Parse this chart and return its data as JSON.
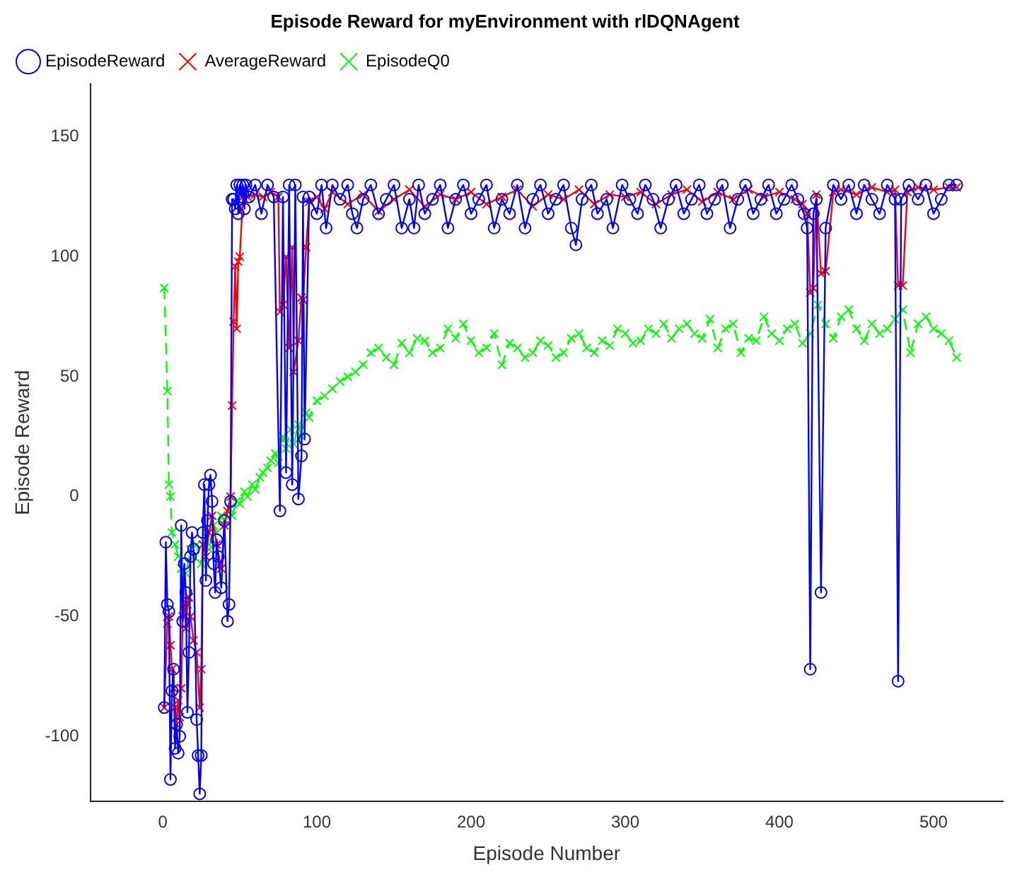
{
  "chart_data": {
    "type": "line",
    "title": "Episode Reward for myEnvironment with rlDQNAgent",
    "xlabel": "Episode Number",
    "ylabel": "Episode Reward",
    "xlim": [
      -47,
      545
    ],
    "ylim": [
      -127,
      172
    ],
    "xticks": [
      0,
      100,
      200,
      300,
      400,
      500
    ],
    "yticks": [
      -100,
      -50,
      0,
      50,
      100,
      150
    ],
    "grid": false,
    "legend": "top left",
    "series": [
      {
        "name": "EpisodeReward",
        "color": "#0000ff",
        "marker": "circle",
        "line_style": "solid",
        "x": [
          1,
          2,
          3,
          4,
          5,
          6,
          7,
          8,
          9,
          10,
          11,
          12,
          13,
          14,
          15,
          16,
          17,
          18,
          19,
          20,
          22,
          23,
          24,
          25,
          26,
          27,
          28,
          29,
          30,
          31,
          32,
          33,
          34,
          35,
          36,
          38,
          40,
          42,
          43,
          44,
          45,
          46,
          47,
          48,
          49,
          50,
          51,
          52,
          53,
          54,
          56,
          60,
          64,
          68,
          72,
          76,
          78,
          80,
          82,
          84,
          86,
          88,
          90,
          91,
          92,
          95,
          100,
          103,
          106,
          110,
          115,
          120,
          123,
          126,
          130,
          135,
          140,
          145,
          150,
          155,
          160,
          163,
          166,
          170,
          175,
          180,
          185,
          190,
          195,
          200,
          205,
          210,
          215,
          220,
          225,
          230,
          235,
          240,
          245,
          250,
          255,
          260,
          265,
          268,
          272,
          278,
          282,
          288,
          292,
          298,
          303,
          308,
          313,
          318,
          323,
          328,
          333,
          338,
          343,
          348,
          353,
          358,
          363,
          368,
          373,
          378,
          383,
          388,
          393,
          398,
          403,
          408,
          412,
          416,
          418,
          420,
          422,
          424,
          427,
          430,
          435,
          440,
          445,
          450,
          455,
          460,
          465,
          470,
          475,
          477,
          479,
          484,
          490,
          495,
          500,
          505,
          510,
          515
        ],
        "values": [
          -88,
          -19,
          -45,
          -48,
          -118,
          -81,
          -72,
          -105,
          -95,
          -107,
          -100,
          -12,
          -52,
          -28,
          -40,
          -90,
          -65,
          -25,
          -15,
          -22,
          -93,
          -108,
          -124,
          -108,
          -15,
          5,
          -35,
          -10,
          5,
          9,
          -2,
          -28,
          -40,
          -18,
          -25,
          -38,
          -10,
          -52,
          -45,
          -2,
          124,
          124,
          120,
          130,
          118,
          130,
          125,
          130,
          120,
          130,
          125,
          130,
          118,
          130,
          125,
          -6,
          125,
          10,
          130,
          5,
          130,
          -1,
          17,
          125,
          24,
          125,
          118,
          130,
          112,
          130,
          124,
          130,
          118,
          112,
          124,
          130,
          118,
          124,
          130,
          112,
          124,
          112,
          130,
          118,
          124,
          130,
          112,
          124,
          130,
          118,
          124,
          130,
          112,
          124,
          118,
          130,
          112,
          124,
          130,
          118,
          124,
          130,
          112,
          105,
          124,
          130,
          118,
          124,
          112,
          130,
          124,
          118,
          130,
          124,
          112,
          124,
          130,
          118,
          124,
          130,
          118,
          124,
          130,
          112,
          124,
          130,
          118,
          124,
          130,
          118,
          124,
          130,
          124,
          118,
          112,
          -72,
          118,
          124,
          -40,
          112,
          130,
          124,
          130,
          118,
          130,
          124,
          118,
          130,
          124,
          -77,
          124,
          130,
          124,
          130,
          118,
          124,
          130,
          130
        ]
      },
      {
        "name": "AverageReward",
        "color": "#ff0000",
        "marker": "cross",
        "line_style": "solid",
        "x": [
          1,
          3,
          4,
          5,
          6,
          7,
          8,
          9,
          10,
          11,
          12,
          13,
          14,
          15,
          16,
          17,
          18,
          20,
          22,
          24,
          25,
          26,
          28,
          30,
          32,
          35,
          38,
          40,
          42,
          44,
          45,
          46,
          47,
          48,
          49,
          50,
          52,
          55,
          60,
          65,
          70,
          75,
          76,
          78,
          80,
          82,
          84,
          85,
          88,
          90,
          91,
          93,
          95,
          100,
          105,
          110,
          120,
          130,
          140,
          150,
          160,
          170,
          180,
          190,
          200,
          210,
          220,
          230,
          240,
          250,
          260,
          270,
          280,
          290,
          300,
          310,
          320,
          330,
          340,
          350,
          360,
          370,
          380,
          390,
          400,
          410,
          415,
          418,
          420,
          422,
          424,
          427,
          430,
          435,
          440,
          450,
          460,
          470,
          475,
          477,
          480,
          483,
          490,
          500,
          510,
          515
        ],
        "values": [
          -88,
          -53,
          -50,
          -62,
          -72,
          -80,
          -88,
          -95,
          -85,
          -92,
          -80,
          -50,
          -45,
          -55,
          -45,
          -42,
          -50,
          -60,
          -65,
          -88,
          -72,
          -20,
          -25,
          -15,
          -8,
          -20,
          -30,
          -12,
          -6,
          0,
          38,
          73,
          96,
          70,
          98,
          100,
          125,
          125,
          126,
          125,
          127,
          125,
          77,
          80,
          100,
          62,
          104,
          52,
          65,
          83,
          82,
          104,
          123,
          125,
          120,
          127,
          122,
          126,
          119,
          124,
          128,
          121,
          126,
          124,
          127,
          122,
          125,
          128,
          121,
          126,
          124,
          128,
          122,
          126,
          125,
          127,
          122,
          126,
          128,
          123,
          127,
          124,
          128,
          125,
          127,
          124,
          122,
          118,
          85,
          87,
          126,
          93,
          94,
          127,
          128,
          126,
          129,
          127,
          128,
          88,
          88,
          127,
          129,
          128,
          129,
          129
        ]
      },
      {
        "name": "EpisodeQ0",
        "color": "#00ff00",
        "marker": "cross",
        "line_style": "dashed",
        "x": [
          1,
          3,
          4,
          5,
          6,
          8,
          10,
          12,
          15,
          18,
          20,
          22,
          25,
          28,
          30,
          33,
          35,
          38,
          40,
          43,
          45,
          48,
          50,
          53,
          55,
          58,
          60,
          63,
          65,
          68,
          70,
          73,
          75,
          78,
          80,
          83,
          85,
          88,
          90,
          93,
          95,
          100,
          105,
          110,
          115,
          120,
          125,
          130,
          135,
          140,
          145,
          150,
          155,
          160,
          165,
          170,
          175,
          180,
          185,
          190,
          195,
          200,
          205,
          210,
          215,
          220,
          225,
          230,
          235,
          240,
          245,
          250,
          255,
          260,
          265,
          270,
          275,
          280,
          285,
          290,
          295,
          300,
          305,
          310,
          315,
          320,
          325,
          330,
          335,
          340,
          345,
          350,
          355,
          360,
          365,
          370,
          375,
          380,
          385,
          390,
          395,
          400,
          405,
          410,
          415,
          420,
          425,
          430,
          435,
          440,
          445,
          450,
          455,
          460,
          465,
          470,
          475,
          480,
          485,
          490,
          495,
          500,
          505,
          510,
          515
        ],
        "values": [
          87,
          44,
          5,
          0,
          -15,
          -20,
          -25,
          -30,
          -32,
          -22,
          -25,
          -20,
          -28,
          -15,
          -22,
          -12,
          -15,
          -8,
          -10,
          -5,
          -8,
          -2,
          -3,
          2,
          0,
          5,
          3,
          8,
          10,
          12,
          15,
          18,
          14,
          25,
          20,
          28,
          22,
          30,
          25,
          35,
          33,
          40,
          42,
          45,
          48,
          50,
          52,
          55,
          60,
          62,
          58,
          55,
          64,
          60,
          66,
          65,
          60,
          62,
          70,
          66,
          72,
          65,
          60,
          62,
          68,
          55,
          64,
          62,
          58,
          60,
          65,
          63,
          58,
          60,
          66,
          68,
          62,
          60,
          65,
          63,
          70,
          68,
          64,
          65,
          70,
          68,
          72,
          66,
          70,
          72,
          68,
          66,
          74,
          62,
          70,
          72,
          60,
          66,
          65,
          75,
          68,
          65,
          70,
          72,
          64,
          68,
          80,
          72,
          66,
          75,
          78,
          70,
          65,
          72,
          68,
          70,
          74,
          78,
          60,
          72,
          75,
          70,
          68,
          65,
          58
        ]
      }
    ]
  }
}
